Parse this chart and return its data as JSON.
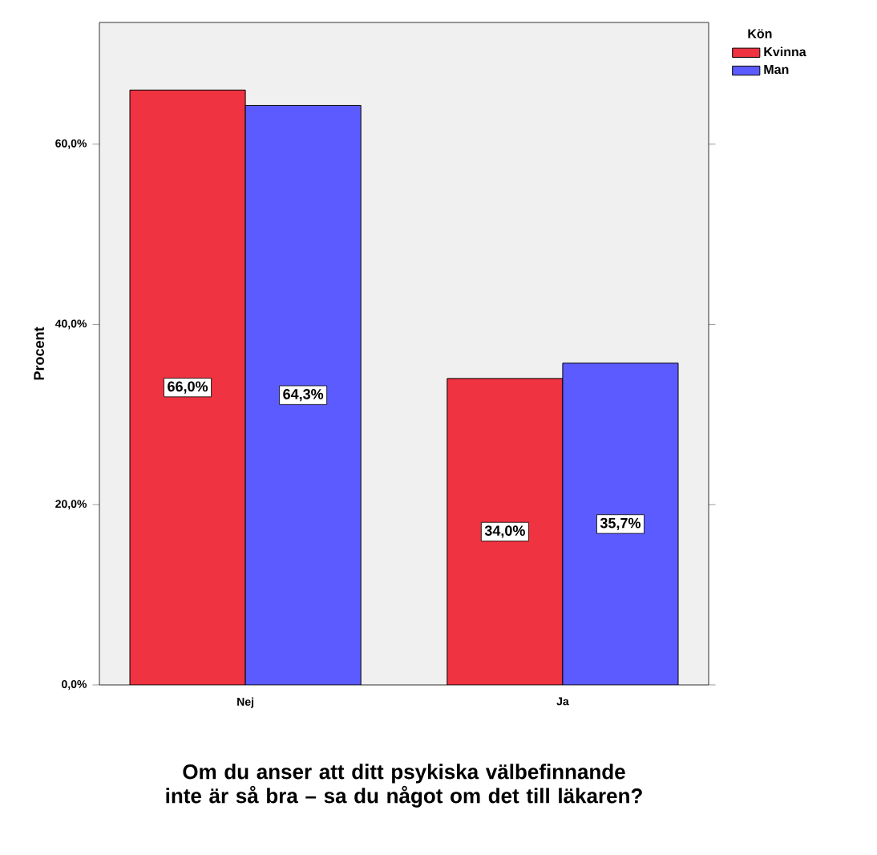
{
  "chart_data": {
    "type": "bar",
    "categories": [
      "Nej",
      "Ja"
    ],
    "series": [
      {
        "name": "Kvinna",
        "color": "#ef3340",
        "values": [
          66.0,
          34.0
        ],
        "value_labels": [
          "66,0%",
          "34,0%"
        ]
      },
      {
        "name": "Man",
        "color": "#5b5bff",
        "values": [
          64.3,
          35.7
        ],
        "value_labels": [
          "64,3%",
          "35,7%"
        ]
      }
    ],
    "ylabel": "Procent",
    "xlabel": "Om du anser att ditt psykiska välbefinnande inte är så bra – sa du något om det till läkaren?",
    "legend_title": "Kön",
    "legend": "top right",
    "grid": false,
    "ylim": [
      0,
      73.5
    ],
    "yticks": [
      {
        "value": 0,
        "label": "0,0%"
      },
      {
        "value": 20,
        "label": "20,0%"
      },
      {
        "value": 40,
        "label": "40,0%"
      },
      {
        "value": 60,
        "label": "60,0%"
      }
    ]
  }
}
